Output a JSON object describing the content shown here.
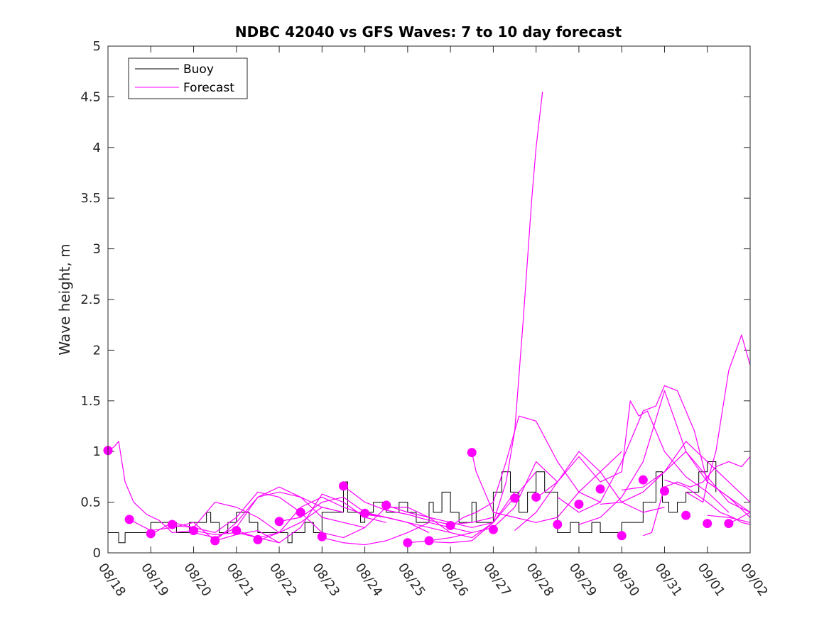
{
  "chart_data": {
    "type": "line",
    "title": "NDBC 42040 vs GFS Waves: 7 to 10 day forecast",
    "xlabel": "",
    "ylabel": "Wave height, m",
    "xlim": [
      0,
      15
    ],
    "ylim": [
      0,
      5
    ],
    "x_ticks": [
      0,
      1,
      2,
      3,
      4,
      5,
      6,
      7,
      8,
      9,
      10,
      11,
      12,
      13,
      14,
      15
    ],
    "x_tick_labels": [
      "08/18",
      "08/19",
      "08/20",
      "08/21",
      "08/22",
      "08/23",
      "08/24",
      "08/25",
      "08/26",
      "08/27",
      "08/28",
      "08/29",
      "08/30",
      "08/31",
      "09/01",
      "09/02"
    ],
    "y_ticks": [
      0,
      0.5,
      1,
      1.5,
      2,
      2.5,
      3,
      3.5,
      4,
      4.5,
      5
    ],
    "y_tick_labels": [
      "0",
      "0.5",
      "1",
      "1.5",
      "2",
      "2.5",
      "3",
      "3.5",
      "4",
      "4.5",
      "5"
    ],
    "legend": {
      "position": "top-left",
      "entries": [
        {
          "label": "Buoy",
          "color": "#000000"
        },
        {
          "label": "Forecast",
          "color": "#ff00ff"
        }
      ]
    },
    "colors": {
      "buoy": "#000000",
      "forecast": "#ff00ff"
    },
    "series": [
      {
        "name": "Buoy",
        "type": "step",
        "color": "#000000",
        "x": [
          0,
          0.15,
          0.25,
          0.4,
          0.6,
          1.0,
          1.6,
          1.9,
          2.0,
          2.3,
          2.4,
          2.6,
          2.8,
          3.0,
          3.3,
          3.5,
          4.0,
          4.2,
          4.3,
          4.6,
          4.8,
          5.0,
          5.2,
          5.5,
          5.6,
          5.9,
          6.0,
          6.2,
          6.5,
          6.8,
          7.0,
          7.2,
          7.5,
          7.6,
          7.8,
          8.0,
          8.2,
          8.5,
          8.6,
          8.8,
          9.0,
          9.2,
          9.4,
          9.6,
          9.8,
          10.0,
          10.2,
          10.5,
          10.8,
          11.0,
          11.3,
          11.5,
          12.0,
          12.5,
          12.8,
          12.95,
          13.1,
          13.3,
          13.5,
          13.8,
          14.0,
          14.2
        ],
        "y": [
          0.2,
          0.2,
          0.1,
          0.2,
          0.2,
          0.3,
          0.2,
          0.3,
          0.3,
          0.4,
          0.3,
          0.2,
          0.3,
          0.4,
          0.3,
          0.2,
          0.2,
          0.1,
          0.2,
          0.3,
          0.2,
          0.4,
          0.4,
          0.7,
          0.4,
          0.3,
          0.4,
          0.5,
          0.4,
          0.5,
          0.4,
          0.3,
          0.5,
          0.4,
          0.6,
          0.4,
          0.3,
          0.5,
          0.3,
          0.3,
          0.6,
          0.8,
          0.6,
          0.4,
          0.6,
          0.8,
          0.6,
          0.2,
          0.3,
          0.2,
          0.3,
          0.2,
          0.3,
          0.5,
          0.8,
          0.5,
          0.4,
          0.5,
          0.6,
          0.8,
          0.9,
          0.6
        ]
      },
      {
        "name": "Forecast run 1",
        "color": "#ff00ff",
        "x": [
          0,
          0.15,
          0.25,
          0.4,
          0.6,
          0.9,
          1.2,
          1.5,
          2.0,
          2.5,
          3.0,
          3.5,
          4.0
        ],
        "y": [
          1.0,
          1.05,
          1.1,
          0.7,
          0.5,
          0.38,
          0.32,
          0.2,
          0.22,
          0.18,
          0.2,
          0.15,
          0.2
        ]
      },
      {
        "name": "Forecast run 2",
        "color": "#ff00ff",
        "x": [
          0.5,
          1.0,
          1.5,
          2.0,
          2.5,
          3.0,
          3.5,
          4.0
        ],
        "y": [
          0.33,
          0.22,
          0.25,
          0.3,
          0.12,
          0.18,
          0.22,
          0.1
        ]
      },
      {
        "name": "Forecast run 3",
        "color": "#ff00ff",
        "x": [
          1.0,
          1.5,
          2.0,
          2.5,
          3.0,
          3.5,
          4.0,
          4.5
        ],
        "y": [
          0.18,
          0.3,
          0.25,
          0.2,
          0.35,
          0.6,
          0.55,
          0.4
        ]
      },
      {
        "name": "Forecast run 4",
        "color": "#ff00ff",
        "x": [
          1.5,
          2.0,
          2.5,
          3.0,
          3.5,
          4.0,
          4.5,
          5.0
        ],
        "y": [
          0.27,
          0.25,
          0.5,
          0.45,
          0.35,
          0.2,
          0.3,
          0.45
        ]
      },
      {
        "name": "Forecast run 5",
        "color": "#ff00ff",
        "x": [
          2.0,
          2.5,
          3.0,
          3.5,
          4.0,
          4.5,
          5.0,
          5.5
        ],
        "y": [
          0.2,
          0.15,
          0.25,
          0.55,
          0.65,
          0.55,
          0.45,
          0.4
        ]
      },
      {
        "name": "Forecast run 6",
        "color": "#ff00ff",
        "x": [
          2.5,
          3.0,
          3.5,
          4.0,
          4.5,
          5.0,
          5.5,
          6.0
        ],
        "y": [
          0.12,
          0.3,
          0.55,
          0.6,
          0.55,
          0.35,
          0.3,
          0.25
        ]
      },
      {
        "name": "Forecast run 7",
        "color": "#ff00ff",
        "x": [
          3.0,
          3.5,
          4.0,
          4.5,
          5.0,
          5.5,
          6.0,
          6.5
        ],
        "y": [
          0.22,
          0.15,
          0.1,
          0.25,
          0.58,
          0.5,
          0.35,
          0.3
        ]
      },
      {
        "name": "Forecast run 8",
        "color": "#ff00ff",
        "x": [
          3.5,
          4.0,
          4.5,
          5.0,
          5.5,
          6.0,
          6.5,
          7.0
        ],
        "y": [
          0.12,
          0.2,
          0.45,
          0.55,
          0.45,
          0.38,
          0.35,
          0.3
        ]
      },
      {
        "name": "Forecast run 9",
        "color": "#ff00ff",
        "x": [
          4.0,
          4.5,
          5.0,
          5.5,
          6.0,
          6.5,
          7.0,
          7.5
        ],
        "y": [
          0.31,
          0.35,
          0.5,
          0.55,
          0.4,
          0.35,
          0.3,
          0.2
        ]
      },
      {
        "name": "Forecast run 10",
        "color": "#ff00ff",
        "x": [
          4.5,
          5.0,
          5.5,
          6.0,
          6.5,
          7.0,
          7.5,
          8.0
        ],
        "y": [
          0.4,
          0.2,
          0.15,
          0.25,
          0.45,
          0.45,
          0.35,
          0.2
        ]
      },
      {
        "name": "Forecast run 11",
        "color": "#ff00ff",
        "x": [
          5.0,
          5.5,
          6.0,
          6.5,
          7.0,
          7.5,
          8.0,
          8.5
        ],
        "y": [
          0.15,
          0.1,
          0.08,
          0.12,
          0.2,
          0.3,
          0.25,
          0.2
        ]
      },
      {
        "name": "Forecast run 12",
        "color": "#ff00ff",
        "x": [
          5.5,
          6.0,
          6.5,
          7.0,
          7.5,
          8.0,
          8.5,
          9.0
        ],
        "y": [
          0.66,
          0.5,
          0.42,
          0.38,
          0.32,
          0.28,
          0.3,
          0.35
        ]
      },
      {
        "name": "Forecast run 13",
        "color": "#ff00ff",
        "x": [
          6.0,
          6.5,
          7.0,
          7.5,
          8.0,
          8.5,
          9.0,
          9.5
        ],
        "y": [
          0.39,
          0.35,
          0.3,
          0.25,
          0.2,
          0.15,
          0.3,
          0.6
        ]
      },
      {
        "name": "Forecast run 14",
        "color": "#ff00ff",
        "x": [
          6.5,
          7.0,
          7.5,
          8.0,
          8.5,
          9.0,
          9.5,
          10.0
        ],
        "y": [
          0.47,
          0.4,
          0.35,
          0.3,
          0.25,
          0.3,
          0.55,
          0.8
        ]
      },
      {
        "name": "Forecast run 15",
        "color": "#ff00ff",
        "x": [
          7.0,
          7.5,
          8.0,
          8.5,
          9.0,
          9.5,
          10.0,
          10.5
        ],
        "y": [
          0.1,
          0.12,
          0.15,
          0.2,
          0.25,
          0.45,
          0.9,
          0.7
        ]
      },
      {
        "name": "Forecast run 16",
        "color": "#ff00ff",
        "x": [
          7.5,
          8.0,
          8.5,
          9.0,
          9.3,
          9.5,
          9.7,
          9.9,
          10.0,
          10.15
        ],
        "y": [
          0.11,
          0.1,
          0.12,
          0.3,
          0.7,
          1.2,
          2.3,
          3.5,
          4.0,
          4.55
        ]
      },
      {
        "name": "Forecast run 17",
        "color": "#ff00ff",
        "x": [
          8.0,
          8.3,
          8.6,
          9.0,
          9.3,
          9.6,
          10.0,
          10.5,
          11.0,
          11.5
        ],
        "y": [
          0.26,
          0.35,
          0.4,
          0.5,
          0.9,
          1.35,
          1.3,
          0.9,
          0.6,
          0.5
        ]
      },
      {
        "name": "Forecast run 18",
        "color": "#ff00ff",
        "x": [
          8.5,
          8.6,
          8.8,
          9.0,
          9.5,
          10.0,
          10.5,
          11.0,
          11.5,
          12.0
        ],
        "y": [
          0.99,
          0.8,
          0.6,
          0.4,
          0.35,
          0.3,
          0.35,
          0.6,
          0.8,
          1.0
        ]
      },
      {
        "name": "Forecast run 19",
        "color": "#ff00ff",
        "x": [
          9.5,
          10.0,
          10.5,
          11.0,
          11.5,
          12.0,
          12.5,
          13.0
        ],
        "y": [
          0.22,
          0.4,
          0.7,
          1.0,
          0.8,
          0.5,
          0.4,
          0.45
        ]
      },
      {
        "name": "Forecast run 20",
        "color": "#ff00ff",
        "x": [
          10.0,
          10.5,
          11.0,
          11.5,
          12.0,
          12.2,
          12.4,
          12.6,
          12.8,
          13.0,
          13.5,
          14.0,
          14.5
        ],
        "y": [
          0.54,
          0.7,
          0.95,
          0.7,
          0.8,
          1.5,
          1.35,
          1.4,
          1.2,
          1.0,
          0.75,
          0.6,
          0.4
        ]
      },
      {
        "name": "Forecast run 21",
        "color": "#ff00ff",
        "x": [
          10.5,
          11.0,
          11.5,
          12.0,
          12.5,
          12.8,
          13.0,
          13.3,
          13.7,
          14.0,
          14.5,
          15.0
        ],
        "y": [
          0.55,
          0.4,
          0.5,
          0.9,
          1.4,
          1.45,
          1.65,
          1.6,
          1.2,
          0.7,
          0.55,
          0.4
        ]
      },
      {
        "name": "Forecast run 22",
        "color": "#ff00ff",
        "x": [
          11.0,
          11.5,
          12.0,
          12.5,
          13.0,
          13.5,
          14.0,
          14.5,
          15.0
        ],
        "y": [
          0.28,
          0.35,
          0.55,
          0.9,
          1.6,
          1.0,
          0.7,
          0.55,
          0.35
        ]
      },
      {
        "name": "Forecast run 23",
        "color": "#ff00ff",
        "x": [
          11.5,
          12.0,
          12.5,
          13.0,
          13.5,
          14.0,
          14.5,
          15.0
        ],
        "y": [
          0.48,
          0.5,
          0.6,
          0.8,
          1.1,
          0.9,
          0.7,
          0.5
        ]
      },
      {
        "name": "Forecast run 24",
        "color": "#ff00ff",
        "x": [
          12.0,
          12.5,
          13.0,
          13.5,
          14.0,
          14.5,
          15.0
        ],
        "y": [
          0.62,
          0.65,
          0.8,
          1.0,
          0.75,
          0.5,
          0.4
        ]
      },
      {
        "name": "Forecast run 25",
        "color": "#ff00ff",
        "x": [
          12.5,
          12.7,
          12.9,
          13.0,
          13.3,
          13.6,
          13.9,
          14.2,
          14.5,
          14.8,
          15.0
        ],
        "y": [
          0.17,
          0.2,
          0.5,
          0.65,
          0.7,
          0.65,
          0.7,
          0.85,
          0.9,
          0.85,
          0.95
        ]
      },
      {
        "name": "Forecast run 26",
        "color": "#ff00ff",
        "x": [
          13.0,
          13.5,
          14.0,
          14.3,
          14.6,
          14.8,
          15.0
        ],
        "y": [
          0.72,
          0.65,
          0.5,
          0.4,
          0.35,
          0.3,
          0.28
        ]
      },
      {
        "name": "Forecast run 27",
        "color": "#ff00ff",
        "x": [
          13.5,
          13.7,
          13.9,
          14.0,
          14.2,
          14.5,
          14.8,
          15.0
        ],
        "y": [
          0.6,
          0.55,
          0.5,
          0.7,
          1.0,
          1.8,
          2.15,
          1.85
        ]
      },
      {
        "name": "Forecast run 28",
        "color": "#ff00ff",
        "x": [
          14.0,
          14.5,
          15.0
        ],
        "y": [
          0.37,
          0.35,
          0.3
        ]
      },
      {
        "name": "Forecast run 29",
        "color": "#ff00ff",
        "x": [
          14.5,
          14.7,
          15.0
        ],
        "y": [
          0.29,
          0.33,
          0.4
        ]
      }
    ],
    "forecast_start_markers": {
      "color": "#ff00ff",
      "x": [
        0,
        0.5,
        1.0,
        1.5,
        2.0,
        2.5,
        3.0,
        3.5,
        4.0,
        4.5,
        5.0,
        5.5,
        6.0,
        6.5,
        7.0,
        7.5,
        8.0,
        8.5,
        9.0,
        9.5,
        10.0,
        10.5,
        11.0,
        11.5,
        12.0,
        12.5,
        13.0,
        13.5,
        14.0,
        14.5
      ],
      "y": [
        1.01,
        0.33,
        0.19,
        0.28,
        0.22,
        0.12,
        0.22,
        0.13,
        0.31,
        0.4,
        0.16,
        0.66,
        0.39,
        0.47,
        0.1,
        0.12,
        0.27,
        0.99,
        0.23,
        0.54,
        0.55,
        0.28,
        0.48,
        0.63,
        0.17,
        0.72,
        0.61,
        0.37,
        0.29,
        0.29
      ]
    }
  }
}
